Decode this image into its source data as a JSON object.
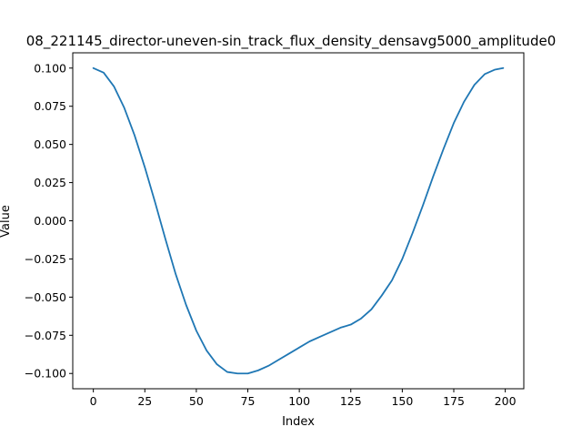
{
  "chart_data": {
    "type": "line",
    "title": "08_221145_director-uneven-sin_track_flux_density_densavg5000_amplitude0",
    "xlabel": "Index",
    "ylabel": "Value",
    "xlim": [
      -10,
      209
    ],
    "ylim": [
      -0.11,
      0.11
    ],
    "xticks": [
      0,
      25,
      50,
      75,
      100,
      125,
      150,
      175,
      200
    ],
    "xtick_labels": [
      "0",
      "25",
      "50",
      "75",
      "100",
      "125",
      "150",
      "175",
      "200"
    ],
    "yticks": [
      0.1,
      0.075,
      0.05,
      0.025,
      0.0,
      -0.025,
      -0.05,
      -0.075,
      -0.1
    ],
    "ytick_labels": [
      "0.100",
      "0.075",
      "0.050",
      "0.025",
      "0.000",
      "−0.025",
      "−0.050",
      "−0.075",
      "−0.100"
    ],
    "grid": false,
    "series": [
      {
        "color": "#1f77b4",
        "x": [
          0,
          5,
          10,
          15,
          20,
          25,
          30,
          35,
          40,
          45,
          50,
          55,
          60,
          65,
          70,
          75,
          80,
          85,
          90,
          95,
          100,
          105,
          110,
          115,
          120,
          125,
          130,
          135,
          140,
          145,
          150,
          155,
          160,
          165,
          170,
          175,
          180,
          185,
          190,
          195,
          199
        ],
        "y": [
          0.1,
          0.097,
          0.088,
          0.074,
          0.056,
          0.035,
          0.012,
          -0.012,
          -0.035,
          -0.055,
          -0.072,
          -0.085,
          -0.094,
          -0.099,
          -0.1,
          -0.1,
          -0.098,
          -0.095,
          -0.091,
          -0.087,
          -0.083,
          -0.079,
          -0.076,
          -0.073,
          -0.07,
          -0.068,
          -0.064,
          -0.058,
          -0.049,
          -0.039,
          -0.025,
          -0.008,
          0.01,
          0.029,
          0.047,
          0.064,
          0.078,
          0.089,
          0.096,
          0.099,
          0.1
        ]
      }
    ]
  }
}
